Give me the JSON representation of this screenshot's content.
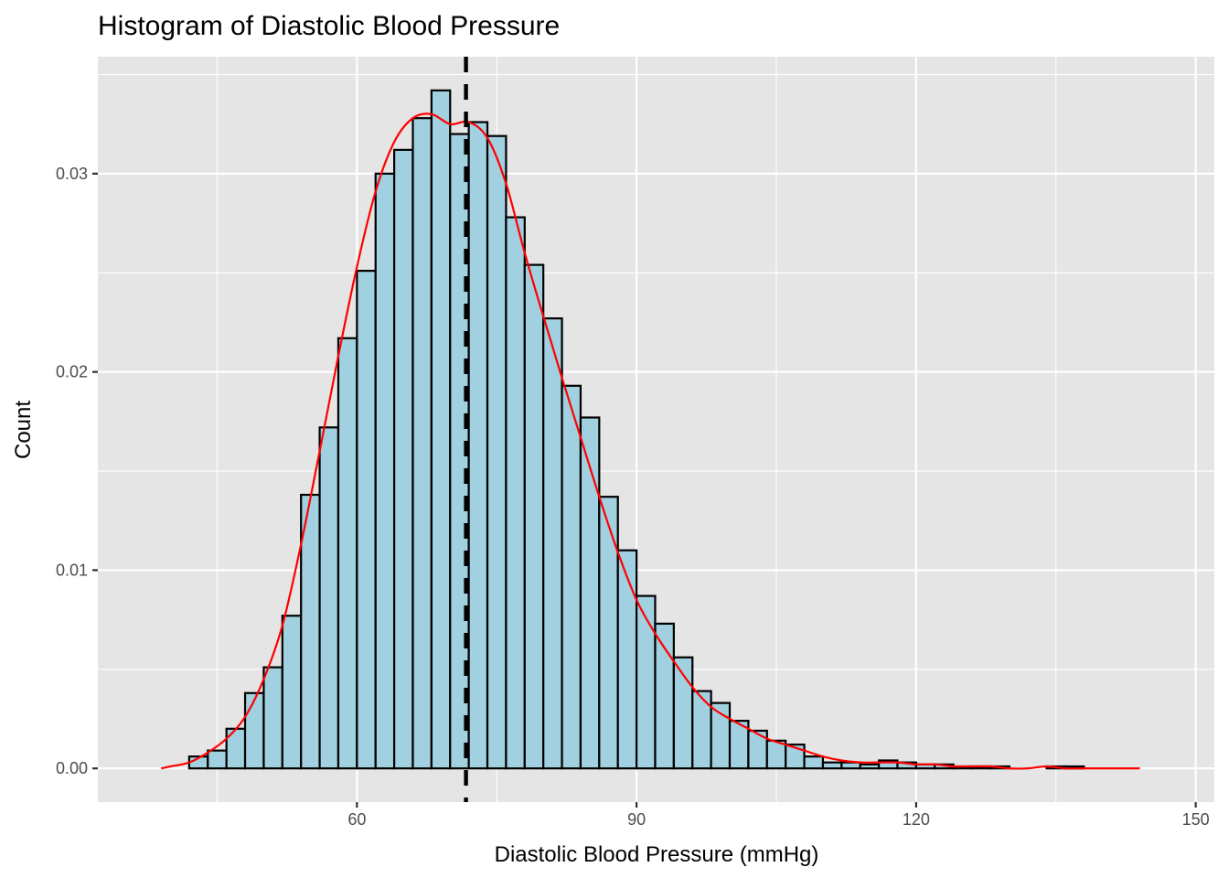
{
  "chart_data": {
    "type": "bar",
    "title": "Histogram of Diastolic Blood Pressure",
    "xlabel": "Diastolic Blood Pressure (mmHg)",
    "ylabel": "Count",
    "xlim": [
      32.2,
      152.0
    ],
    "ylim": [
      -0.0017,
      0.0359
    ],
    "x_ticks": [
      60,
      90,
      120,
      150
    ],
    "x_tick_labels": [
      "60",
      "90",
      "120",
      "150"
    ],
    "y_ticks": [
      0.0,
      0.01,
      0.02,
      0.03
    ],
    "y_tick_labels": [
      "0.00",
      "0.01",
      "0.02",
      "0.03"
    ],
    "grid": true,
    "colors": {
      "panel": "#e5e5e5",
      "grid": "#ffffff",
      "bar_fill": "#a1d0e0",
      "bar_outline": "#000000",
      "density_line": "#ff0000",
      "mean_line": "#000000"
    },
    "bins": {
      "start": 38,
      "width": 2,
      "values": [
        0.0,
        0.0,
        0.0006,
        0.0009,
        0.002,
        0.0038,
        0.0051,
        0.0077,
        0.0138,
        0.0172,
        0.0217,
        0.0251,
        0.03,
        0.0312,
        0.0328,
        0.0342,
        0.032,
        0.0326,
        0.0319,
        0.0278,
        0.0254,
        0.0227,
        0.0193,
        0.0177,
        0.0137,
        0.011,
        0.0087,
        0.0073,
        0.0056,
        0.0039,
        0.0033,
        0.0024,
        0.0019,
        0.0014,
        0.0012,
        0.0006,
        0.0003,
        0.0003,
        0.0002,
        0.0004,
        0.0003,
        0.0002,
        0.0002,
        0.0001,
        0.0001,
        0.0001,
        0.0,
        0.0,
        0.0001,
        0.0001,
        0.0,
        0.0,
        0.0,
        0.0
      ]
    },
    "density_curve": {
      "name": "density",
      "x": [
        39,
        40,
        42,
        44,
        46,
        48,
        50,
        52,
        54,
        56,
        58,
        60,
        62,
        64,
        66,
        68,
        70,
        72,
        74,
        76,
        78,
        80,
        82,
        84,
        86,
        88,
        90,
        92,
        94,
        96,
        98,
        100,
        102,
        104,
        106,
        108,
        110,
        112,
        114,
        116,
        118,
        120,
        122,
        124,
        126,
        128,
        130,
        132,
        134,
        136,
        138,
        140,
        142,
        144
      ],
      "y": [
        0.0,
        0.0001,
        0.0003,
        0.0008,
        0.0015,
        0.0026,
        0.0045,
        0.0072,
        0.0113,
        0.016,
        0.0208,
        0.0253,
        0.0291,
        0.0316,
        0.0328,
        0.033,
        0.0325,
        0.0326,
        0.0318,
        0.0295,
        0.026,
        0.0228,
        0.0197,
        0.0167,
        0.0137,
        0.0109,
        0.0085,
        0.0068,
        0.0054,
        0.0041,
        0.0031,
        0.0025,
        0.002,
        0.0015,
        0.0012,
        0.0009,
        0.0006,
        0.0004,
        0.0003,
        0.0003,
        0.0003,
        0.0002,
        0.0002,
        0.0001,
        0.0001,
        0.0001,
        0.0,
        0.0,
        0.0001,
        0.0,
        0.0,
        0.0,
        0.0,
        0.0
      ]
    },
    "mean_line": {
      "x": 71.7,
      "style": "dashed"
    }
  }
}
